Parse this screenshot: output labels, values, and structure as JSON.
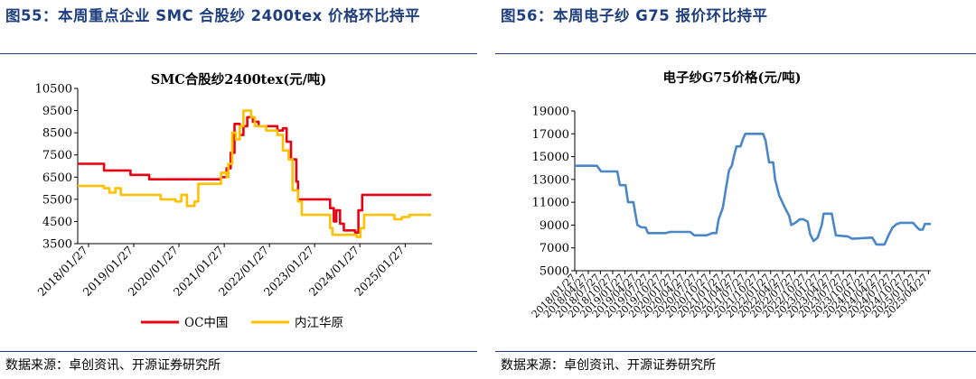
{
  "left": {
    "figure_title": "图55：本周重点企业 SMC 合股纱 2400tex 价格环比持平",
    "source": "数据来源：卓创资讯、开源证券研究所",
    "colors": {
      "oc": "#e60012",
      "neijiang": "#ffc000"
    }
  },
  "right": {
    "figure_title": "图56：本周电子纱 G75 报价环比持平",
    "source": "数据来源：卓创资讯、开源证券研究所",
    "colors": {
      "line": "#4a86c8"
    }
  },
  "chart_data": [
    {
      "type": "line",
      "title": "SMC合股纱2400tex(元/吨)",
      "xlabel": "",
      "ylabel": "",
      "ylim": [
        3500,
        10500
      ],
      "yticks": [
        "10500",
        "9500",
        "8500",
        "7500",
        "6500",
        "5500",
        "4500",
        "3500"
      ],
      "xlim": [
        "2017-11-01",
        "2025-08-31"
      ],
      "xticks": [
        "2018/01/27",
        "2019/01/27",
        "2020/01/27",
        "2021/01/27",
        "2022/01/27",
        "2023/01/27",
        "2024/01/27",
        "2025/01/27"
      ],
      "legend_position": "bottom",
      "series": [
        {
          "name": "OC中国",
          "color": "#e60012",
          "step": true,
          "points": [
            [
              "2017-11-01",
              7100
            ],
            [
              "2018-05-01",
              7100
            ],
            [
              "2018-06-01",
              6800
            ],
            [
              "2018-12-01",
              6800
            ],
            [
              "2019-01-01",
              6600
            ],
            [
              "2019-05-01",
              6600
            ],
            [
              "2019-06-01",
              6400
            ],
            [
              "2020-12-01",
              6400
            ],
            [
              "2021-01-01",
              6500
            ],
            [
              "2021-02-15",
              6900
            ],
            [
              "2021-03-20",
              7600
            ],
            [
              "2021-04-20",
              8900
            ],
            [
              "2021-06-01",
              8400
            ],
            [
              "2021-07-01",
              8800
            ],
            [
              "2021-08-01",
              9200
            ],
            [
              "2021-09-15",
              9000
            ],
            [
              "2021-11-01",
              8800
            ],
            [
              "2022-04-01",
              8600
            ],
            [
              "2022-05-15",
              8700
            ],
            [
              "2022-06-15",
              8100
            ],
            [
              "2022-07-20",
              7300
            ],
            [
              "2022-09-01",
              6300
            ],
            [
              "2022-09-15",
              5500
            ],
            [
              "2023-05-01",
              5500
            ],
            [
              "2023-06-01",
              5100
            ],
            [
              "2023-07-01",
              4500
            ],
            [
              "2023-07-20",
              5000
            ],
            [
              "2023-08-20",
              4400
            ],
            [
              "2023-09-20",
              4100
            ],
            [
              "2023-12-20",
              4000
            ],
            [
              "2024-01-15",
              5000
            ],
            [
              "2024-02-15",
              5700
            ],
            [
              "2025-08-25",
              5700
            ]
          ]
        },
        {
          "name": "内江华原",
          "color": "#ffc000",
          "step": true,
          "points": [
            [
              "2017-11-01",
              6100
            ],
            [
              "2018-06-01",
              6000
            ],
            [
              "2018-07-15",
              5800
            ],
            [
              "2018-09-01",
              6000
            ],
            [
              "2018-10-15",
              5700
            ],
            [
              "2019-03-01",
              5700
            ],
            [
              "2019-09-01",
              5500
            ],
            [
              "2020-01-01",
              5400
            ],
            [
              "2020-02-15",
              5700
            ],
            [
              "2020-04-01",
              5200
            ],
            [
              "2020-06-01",
              5400
            ],
            [
              "2020-07-01",
              6200
            ],
            [
              "2020-12-01",
              6200
            ],
            [
              "2021-01-01",
              6700
            ],
            [
              "2021-02-15",
              6500
            ],
            [
              "2021-03-01",
              7100
            ],
            [
              "2021-04-01",
              8500
            ],
            [
              "2021-05-01",
              8200
            ],
            [
              "2021-06-01",
              8800
            ],
            [
              "2021-07-01",
              9500
            ],
            [
              "2021-09-01",
              9200
            ],
            [
              "2021-10-01",
              8800
            ],
            [
              "2022-01-01",
              8600
            ],
            [
              "2022-04-01",
              8400
            ],
            [
              "2022-05-15",
              7700
            ],
            [
              "2022-07-01",
              7300
            ],
            [
              "2022-08-01",
              5900
            ],
            [
              "2022-09-15",
              5400
            ],
            [
              "2022-10-15",
              4800
            ],
            [
              "2023-05-01",
              4800
            ],
            [
              "2023-06-01",
              4200
            ],
            [
              "2023-06-20",
              3900
            ],
            [
              "2024-01-01",
              3800
            ],
            [
              "2024-02-01",
              4200
            ],
            [
              "2024-03-01",
              4800
            ],
            [
              "2024-10-01",
              4800
            ],
            [
              "2024-11-01",
              4600
            ],
            [
              "2025-01-01",
              4700
            ],
            [
              "2025-03-01",
              4800
            ],
            [
              "2025-08-25",
              4800
            ]
          ]
        }
      ]
    },
    {
      "type": "line",
      "title": "电子纱G75价格(元/吨)",
      "xlabel": "",
      "ylabel": "",
      "ylim": [
        5000,
        19000
      ],
      "yticks": [
        "19000",
        "17000",
        "15000",
        "13000",
        "11000",
        "9000",
        "7000",
        "5000"
      ],
      "xlim": [
        "2018-01-15",
        "2025-05-15"
      ],
      "xtick_dates": [
        "2018-01-27",
        "2018-04-27",
        "2018-07-27",
        "2018-10-27",
        "2019-01-27",
        "2019-04-27",
        "2019-07-27",
        "2019-10-27",
        "2020-01-27",
        "2020-04-27",
        "2020-07-27",
        "2020-10-27",
        "2021-01-27",
        "2021-04-27",
        "2021-07-27",
        "2021-10-27",
        "2022-01-27",
        "2022-04-27",
        "2022-07-27",
        "2022-10-27",
        "2023-01-27",
        "2023-04-27",
        "2023-07-27",
        "2023-10-27",
        "2024-01-27",
        "2024-04-27",
        "2024-07-27",
        "2024-10-27",
        "2025-01-27",
        "2025-04-27"
      ],
      "xticks": [
        "2018/01/27",
        "2018/04/27",
        "2018/07/27",
        "2018/10/27",
        "2019/01/27",
        "2019/04/27",
        "2019/07/27",
        "2019/10/27",
        "2020/01/27",
        "2020/04/27",
        "2020/07/27",
        "2020/10/27",
        "2021/01/27",
        "2021/04/27",
        "2021/07/27",
        "2021/10/27",
        "2022/01/27",
        "2022/04/27",
        "2022/07/27",
        "2022/10/27",
        "2023/01/27",
        "2023/04/27",
        "2023/07/27",
        "2023/10/27",
        "2024/01/27",
        "2024/04/27",
        "2024/07/27",
        "2024/10/27",
        "2025/01/27",
        "2025/04/27"
      ],
      "legend_position": "none",
      "series": [
        {
          "name": "",
          "color": "#4a86c8",
          "step": false,
          "points": [
            [
              "2018-01-15",
              14200
            ],
            [
              "2018-07-01",
              14200
            ],
            [
              "2018-08-01",
              13700
            ],
            [
              "2018-12-01",
              13700
            ],
            [
              "2018-12-20",
              12500
            ],
            [
              "2019-02-01",
              12500
            ],
            [
              "2019-02-20",
              11000
            ],
            [
              "2019-04-01",
              11000
            ],
            [
              "2019-05-01",
              9000
            ],
            [
              "2019-06-01",
              8800
            ],
            [
              "2019-07-01",
              8800
            ],
            [
              "2019-07-20",
              8300
            ],
            [
              "2019-12-01",
              8300
            ],
            [
              "2020-01-01",
              8400
            ],
            [
              "2020-06-01",
              8400
            ],
            [
              "2020-07-01",
              8100
            ],
            [
              "2020-10-01",
              8100
            ],
            [
              "2020-11-15",
              8300
            ],
            [
              "2020-12-15",
              8300
            ],
            [
              "2021-01-01",
              9500
            ],
            [
              "2021-02-01",
              10500
            ],
            [
              "2021-03-01",
              12500
            ],
            [
              "2021-03-20",
              13800
            ],
            [
              "2021-04-10",
              14200
            ],
            [
              "2021-04-25",
              15000
            ],
            [
              "2021-05-15",
              15900
            ],
            [
              "2021-06-15",
              15900
            ],
            [
              "2021-07-01",
              16500
            ],
            [
              "2021-07-20",
              17000
            ],
            [
              "2021-12-01",
              17000
            ],
            [
              "2021-12-20",
              16400
            ],
            [
              "2022-01-15",
              14500
            ],
            [
              "2022-02-15",
              14500
            ],
            [
              "2022-03-01",
              13000
            ],
            [
              "2022-04-01",
              11600
            ],
            [
              "2022-05-15",
              10500
            ],
            [
              "2022-06-15",
              9800
            ],
            [
              "2022-07-01",
              9000
            ],
            [
              "2022-08-01",
              9200
            ],
            [
              "2022-09-01",
              9500
            ],
            [
              "2022-10-01",
              9500
            ],
            [
              "2022-11-01",
              9300
            ],
            [
              "2022-11-20",
              8200
            ],
            [
              "2022-12-15",
              7600
            ],
            [
              "2023-01-15",
              7900
            ],
            [
              "2023-02-15",
              9000
            ],
            [
              "2023-03-01",
              10000
            ],
            [
              "2023-05-01",
              10000
            ],
            [
              "2023-06-01",
              8100
            ],
            [
              "2023-09-01",
              8000
            ],
            [
              "2023-10-01",
              7800
            ],
            [
              "2024-03-01",
              7900
            ],
            [
              "2024-04-01",
              7300
            ],
            [
              "2024-06-01",
              7300
            ],
            [
              "2024-07-01",
              8100
            ],
            [
              "2024-08-01",
              8800
            ],
            [
              "2024-09-01",
              9100
            ],
            [
              "2024-10-01",
              9200
            ],
            [
              "2025-01-01",
              9200
            ],
            [
              "2025-02-01",
              8800
            ],
            [
              "2025-02-20",
              8600
            ],
            [
              "2025-03-15",
              8600
            ],
            [
              "2025-04-01",
              9100
            ],
            [
              "2025-05-15",
              9100
            ]
          ]
        }
      ]
    }
  ]
}
